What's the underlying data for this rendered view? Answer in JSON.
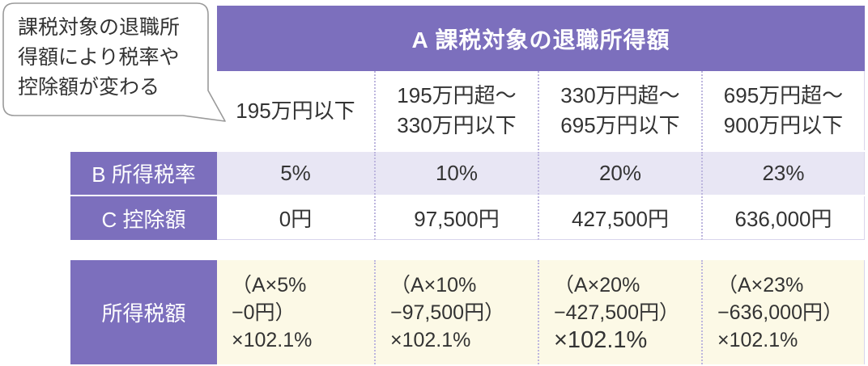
{
  "callout": {
    "lines": [
      "課税対象の退職所",
      "得額により税率や",
      "控除額が変わる"
    ]
  },
  "table": {
    "header": "A 課税対象の退職所得額",
    "brackets": [
      [
        "195万円以下"
      ],
      [
        "195万円超〜",
        "330万円以下"
      ],
      [
        "330万円超〜",
        "695万円以下"
      ],
      [
        "695万円超〜",
        "900万円以下"
      ]
    ],
    "rate": {
      "label": "B 所得税率",
      "values": [
        "5%",
        "10%",
        "20%",
        "23%"
      ]
    },
    "deduction": {
      "label": "C 控除額",
      "values": [
        "0円",
        "97,500円",
        "427,500円",
        "636,000円"
      ]
    },
    "tax": {
      "label": "所得税額",
      "formulas": [
        [
          "（A×5%",
          "−0円）",
          "×102.1%"
        ],
        [
          "（A×10%",
          "−97,500円）",
          "×102.1%"
        ],
        [
          "（A×20%",
          "−427,500円）",
          "×102.1%"
        ],
        [
          "（A×23%",
          "−636,000円）",
          "×102.1%"
        ]
      ]
    }
  },
  "colors": {
    "accent": "#7c6fbd",
    "rate_row": "#e8e6f4",
    "tax_row": "#fcf9e6",
    "text": "#333333"
  }
}
